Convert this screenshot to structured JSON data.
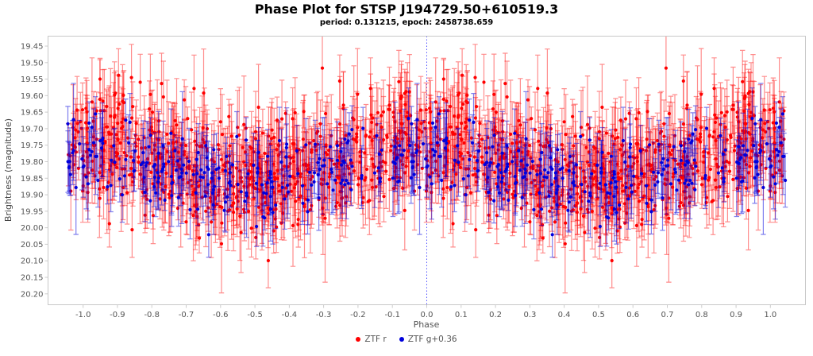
{
  "header": {
    "title": "Phase Plot for STSP J194729.50+610519.3",
    "subtitle": "period: 0.131215, epoch: 2458738.659",
    "period": "0.131215",
    "epoch": "2458738.659"
  },
  "legend": {
    "items": [
      {
        "label": "ZTF r",
        "color": "#ff0000"
      },
      {
        "label": "ZTF g+0.36",
        "color": "#0000dd"
      }
    ]
  },
  "chart_data": {
    "type": "scatter",
    "title": "Phase Plot for STSP J194729.50+610519.3",
    "subtitle": "period: 0.131215, epoch: 2458738.659",
    "xlabel": "Phase",
    "ylabel": "Brightness (magnitude)",
    "x_ticks": [
      "-1.0",
      "-0.9",
      "-0.8",
      "-0.7",
      "-0.6",
      "-0.5",
      "-0.4",
      "-0.3",
      "-0.2",
      "-0.1",
      "0.0",
      "0.1",
      "0.2",
      "0.3",
      "0.4",
      "0.5",
      "0.6",
      "0.7",
      "0.8",
      "0.9",
      "1.0"
    ],
    "y_ticks": [
      "19.45",
      "19.50",
      "19.55",
      "19.60",
      "19.65",
      "19.70",
      "19.75",
      "19.80",
      "19.85",
      "19.90",
      "19.95",
      "20.00",
      "20.05",
      "20.10",
      "20.15",
      "20.20"
    ],
    "xlim": [
      -1.102,
      1.102
    ],
    "ylim": [
      19.42,
      20.233
    ],
    "y_inverted": true,
    "grid": false,
    "legend_position": "bottom-center",
    "fold_range": [
      -1.045,
      1.045
    ],
    "reference_line": {
      "x": 0.0,
      "color": "#4444ff",
      "style": "dotted"
    },
    "axis_style": {
      "border_color": "#c8c8c8",
      "tick_color": "#cccccc",
      "tick_label_color": "#545454",
      "tick_length": 4
    },
    "seed": 987123,
    "series": [
      {
        "name": "ZTF r",
        "color": "#ff0000",
        "marker": "circle",
        "marker_radius": 2.1,
        "bar_opacity": 0.45,
        "cap_half_width": 3.2,
        "n_base": 700,
        "model": {
          "mean_mag": 19.8,
          "amplitude": 0.055,
          "phase_of_max_brightness": 0.0,
          "scatter_sigma": 0.085,
          "err_mean": 0.09,
          "err_sigma": 0.032,
          "err_min": 0.035,
          "err_max": 0.24
        }
      },
      {
        "name": "ZTF g+0.36",
        "color": "#0000dd",
        "marker": "circle",
        "marker_radius": 2.1,
        "bar_opacity": 0.5,
        "cap_half_width": 3.2,
        "n_base": 240,
        "model": {
          "mean_mag": 19.825,
          "amplitude": 0.045,
          "phase_of_max_brightness": 0.0,
          "scatter_sigma": 0.058,
          "err_mean": 0.078,
          "err_sigma": 0.026,
          "err_min": 0.03,
          "err_max": 0.2
        }
      }
    ]
  }
}
